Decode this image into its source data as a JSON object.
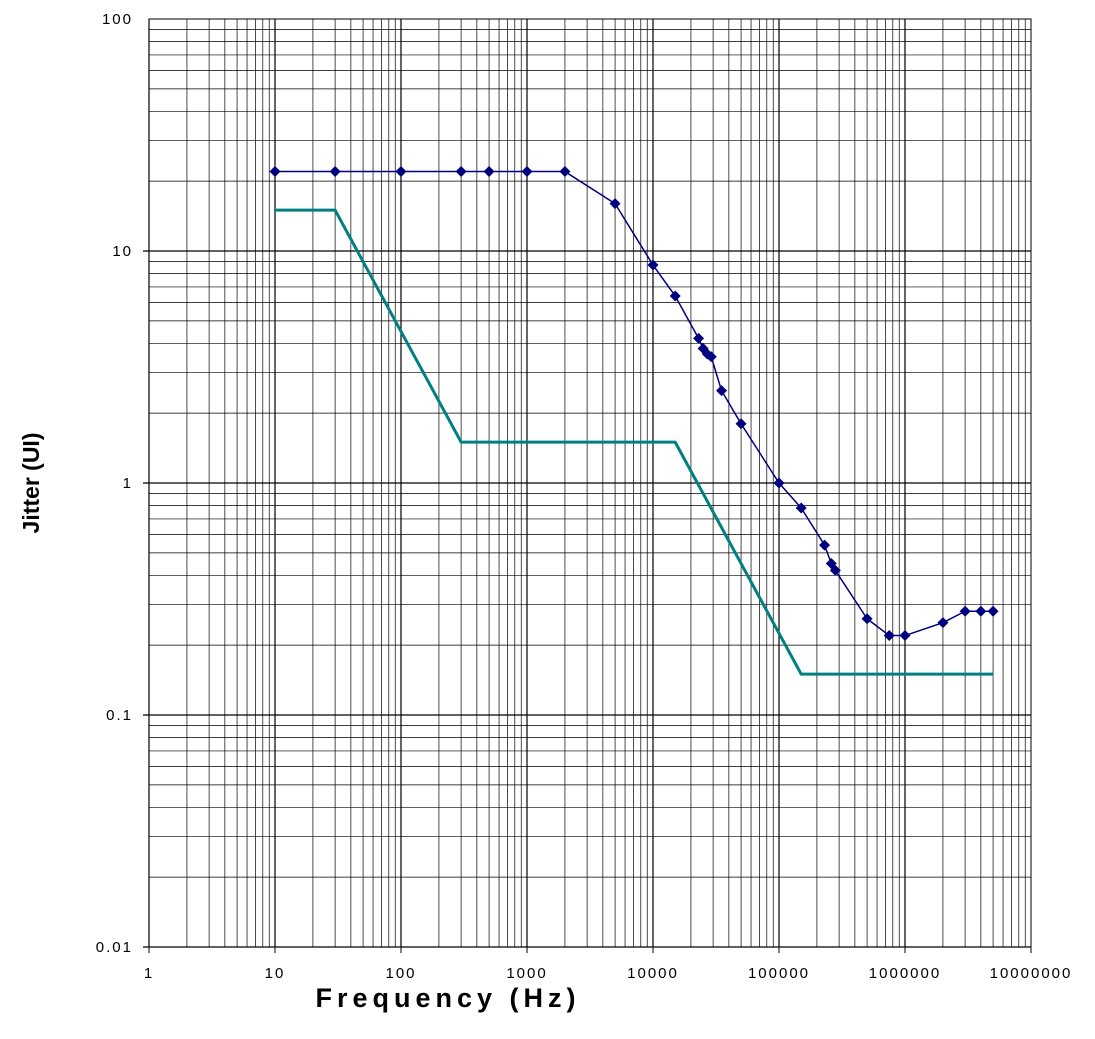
{
  "chart_data": {
    "type": "line",
    "title": "",
    "xlabel": "Frequency (Hz)",
    "ylabel": "Jitter (UI)",
    "x_scale": "log",
    "y_scale": "log",
    "xlim": [
      1,
      10000000
    ],
    "ylim": [
      0.01,
      100
    ],
    "grid": true,
    "legend": "none",
    "x_ticks": [
      {
        "value": 1,
        "label": "1"
      },
      {
        "value": 10,
        "label": "10"
      },
      {
        "value": 100,
        "label": "100"
      },
      {
        "value": 1000,
        "label": "1000"
      },
      {
        "value": 10000,
        "label": "10000"
      },
      {
        "value": 100000,
        "label": "100000"
      },
      {
        "value": 1000000,
        "label": "1000000"
      },
      {
        "value": 10000000,
        "label": "10000000"
      }
    ],
    "y_ticks": [
      {
        "value": 0.01,
        "label": "0.01"
      },
      {
        "value": 0.1,
        "label": "0.1"
      },
      {
        "value": 1,
        "label": "1"
      },
      {
        "value": 10,
        "label": "10"
      },
      {
        "value": 100,
        "label": "100"
      }
    ],
    "series": [
      {
        "color": "#00007f",
        "marker": "diamond",
        "points": [
          [
            10,
            22
          ],
          [
            30,
            22
          ],
          [
            100,
            22
          ],
          [
            300,
            22
          ],
          [
            500,
            22
          ],
          [
            1000,
            22
          ],
          [
            2000,
            22
          ],
          [
            5000,
            16
          ],
          [
            10000,
            8.7
          ],
          [
            15000,
            6.4
          ],
          [
            23000,
            4.2
          ],
          [
            25000,
            3.8
          ],
          [
            27000,
            3.6
          ],
          [
            29000,
            3.5
          ],
          [
            35000,
            2.5
          ],
          [
            50000,
            1.8
          ],
          [
            100000,
            1.0
          ],
          [
            150000,
            0.78
          ],
          [
            230000,
            0.54
          ],
          [
            260000,
            0.45
          ],
          [
            280000,
            0.42
          ],
          [
            500000,
            0.26
          ],
          [
            750000,
            0.22
          ],
          [
            1000000,
            0.22
          ],
          [
            2000000,
            0.25
          ],
          [
            3000000,
            0.28
          ],
          [
            4000000,
            0.28
          ],
          [
            5000000,
            0.28
          ]
        ]
      },
      {
        "color": "#008080",
        "marker": "none",
        "points": [
          [
            10,
            15
          ],
          [
            30,
            15
          ],
          [
            300,
            1.5
          ],
          [
            15000,
            1.5
          ],
          [
            150000,
            0.15
          ],
          [
            5000000,
            0.15
          ]
        ]
      }
    ]
  }
}
